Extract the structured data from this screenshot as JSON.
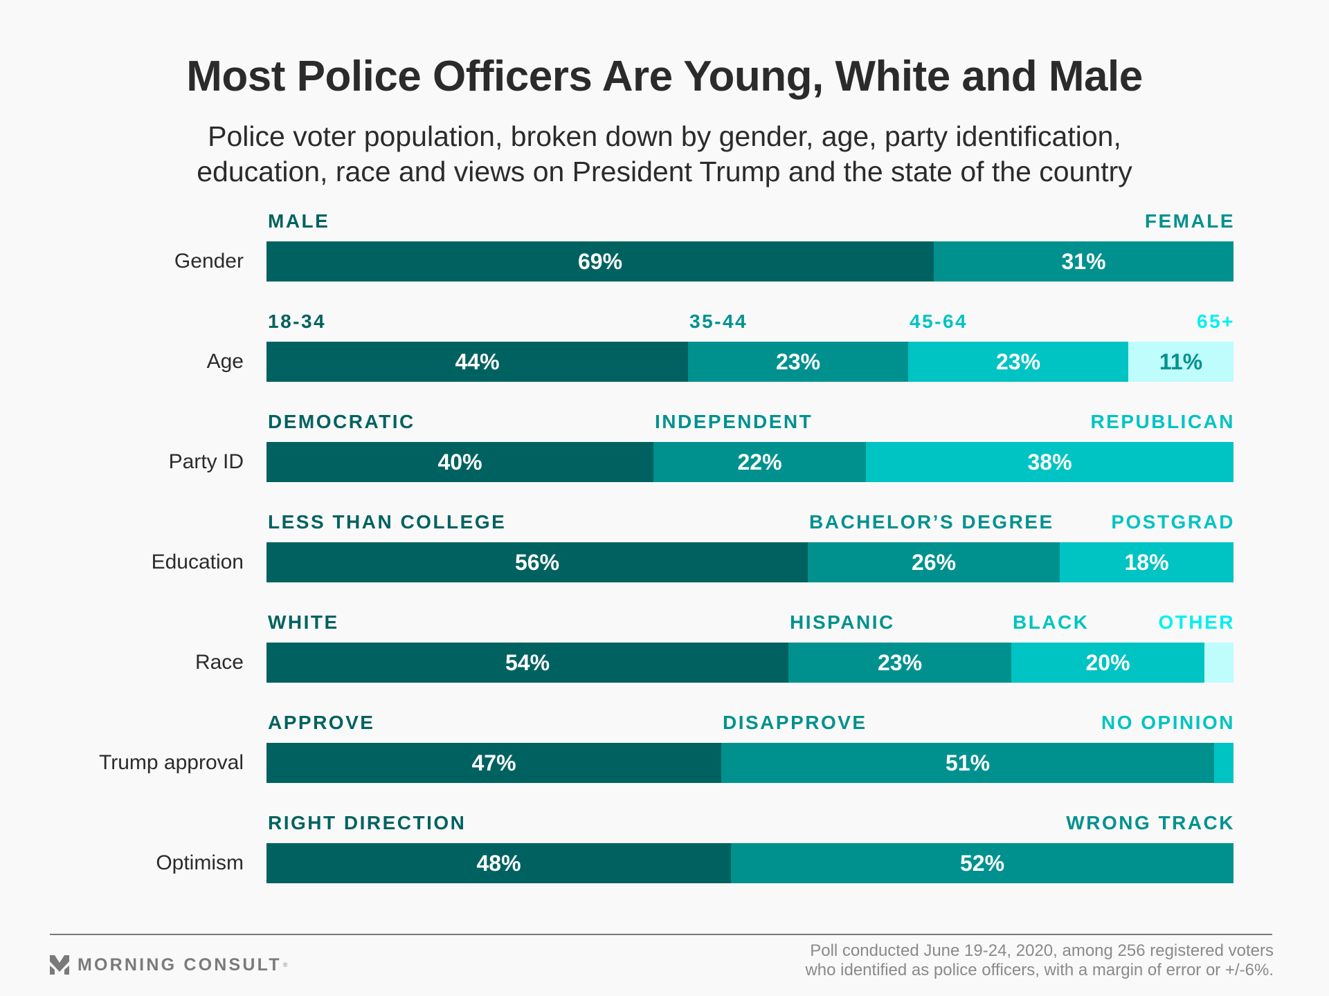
{
  "header": {
    "title": "Most Police Officers Are Young, White and Male",
    "subtitle_lines": [
      "Police voter population, broken down by gender, age, party identification,",
      "education, race and views on President Trump and the state of the country"
    ]
  },
  "palette": {
    "seg_fill": [
      "#006260",
      "#00918f",
      "#00c3c3",
      "#bffcfc"
    ],
    "cat_text": [
      "#006260",
      "#00918f",
      "#00c3c3",
      "#00f0f0"
    ],
    "value_text_light_fill": "#00918f"
  },
  "chart_data": {
    "type": "bar",
    "orientation": "horizontal",
    "stacked": true,
    "normalized": true,
    "title": "Most Police Officers Are Young, White and Male",
    "subtitle": "Police voter population, broken down by gender, age, party identification, education, race and views on President Trump and the state of the country",
    "xlabel": "",
    "ylabel": "",
    "xlim": [
      0,
      100
    ],
    "grid": false,
    "unit": "%",
    "rows": [
      {
        "label": "Gender",
        "segments": [
          {
            "name": "MALE",
            "value": 69,
            "value_label": "69%"
          },
          {
            "name": "FEMALE",
            "value": 31,
            "value_label": "31%"
          }
        ]
      },
      {
        "label": "Age",
        "segments": [
          {
            "name": "18-34",
            "value": 44,
            "value_label": "44%"
          },
          {
            "name": "35-44",
            "value": 23,
            "value_label": "23%"
          },
          {
            "name": "45-64",
            "value": 23,
            "value_label": "23%"
          },
          {
            "name": "65+",
            "value": 11,
            "value_label": "11%"
          }
        ]
      },
      {
        "label": "Party ID",
        "segments": [
          {
            "name": "DEMOCRATIC",
            "value": 40,
            "value_label": "40%"
          },
          {
            "name": "INDEPENDENT",
            "value": 22,
            "value_label": "22%"
          },
          {
            "name": "REPUBLICAN",
            "value": 38,
            "value_label": "38%"
          }
        ]
      },
      {
        "label": "Education",
        "segments": [
          {
            "name": "LESS THAN COLLEGE",
            "value": 56,
            "value_label": "56%"
          },
          {
            "name": "BACHELOR’S DEGREE",
            "value": 26,
            "value_label": "26%"
          },
          {
            "name": "POSTGRAD",
            "value": 18,
            "value_label": "18%"
          }
        ]
      },
      {
        "label": "Race",
        "segments": [
          {
            "name": "WHITE",
            "value": 54,
            "value_label": "54%"
          },
          {
            "name": "HISPANIC",
            "value": 23,
            "value_label": "23%"
          },
          {
            "name": "BLACK",
            "value": 20,
            "value_label": "20%"
          },
          {
            "name": "OTHER",
            "value": 3,
            "value_label": ""
          }
        ]
      },
      {
        "label": "Trump approval",
        "segments": [
          {
            "name": "APPROVE",
            "value": 47,
            "value_label": "47%"
          },
          {
            "name": "DISAPPROVE",
            "value": 51,
            "value_label": "51%"
          },
          {
            "name": "NO OPINION",
            "value": 2,
            "value_label": ""
          }
        ]
      },
      {
        "label": "Optimism",
        "segments": [
          {
            "name": "RIGHT DIRECTION",
            "value": 48,
            "value_label": "48%"
          },
          {
            "name": "WRONG TRACK",
            "value": 52,
            "value_label": "52%"
          }
        ]
      }
    ]
  },
  "footer": {
    "brand": "MORNING CONSULT",
    "brand_mark": "registered-trademark",
    "note_lines": [
      "Poll conducted June 19-24, 2020, among 256 registered voters",
      "who identified as police officers, with a margin of error or +/-6%."
    ]
  }
}
